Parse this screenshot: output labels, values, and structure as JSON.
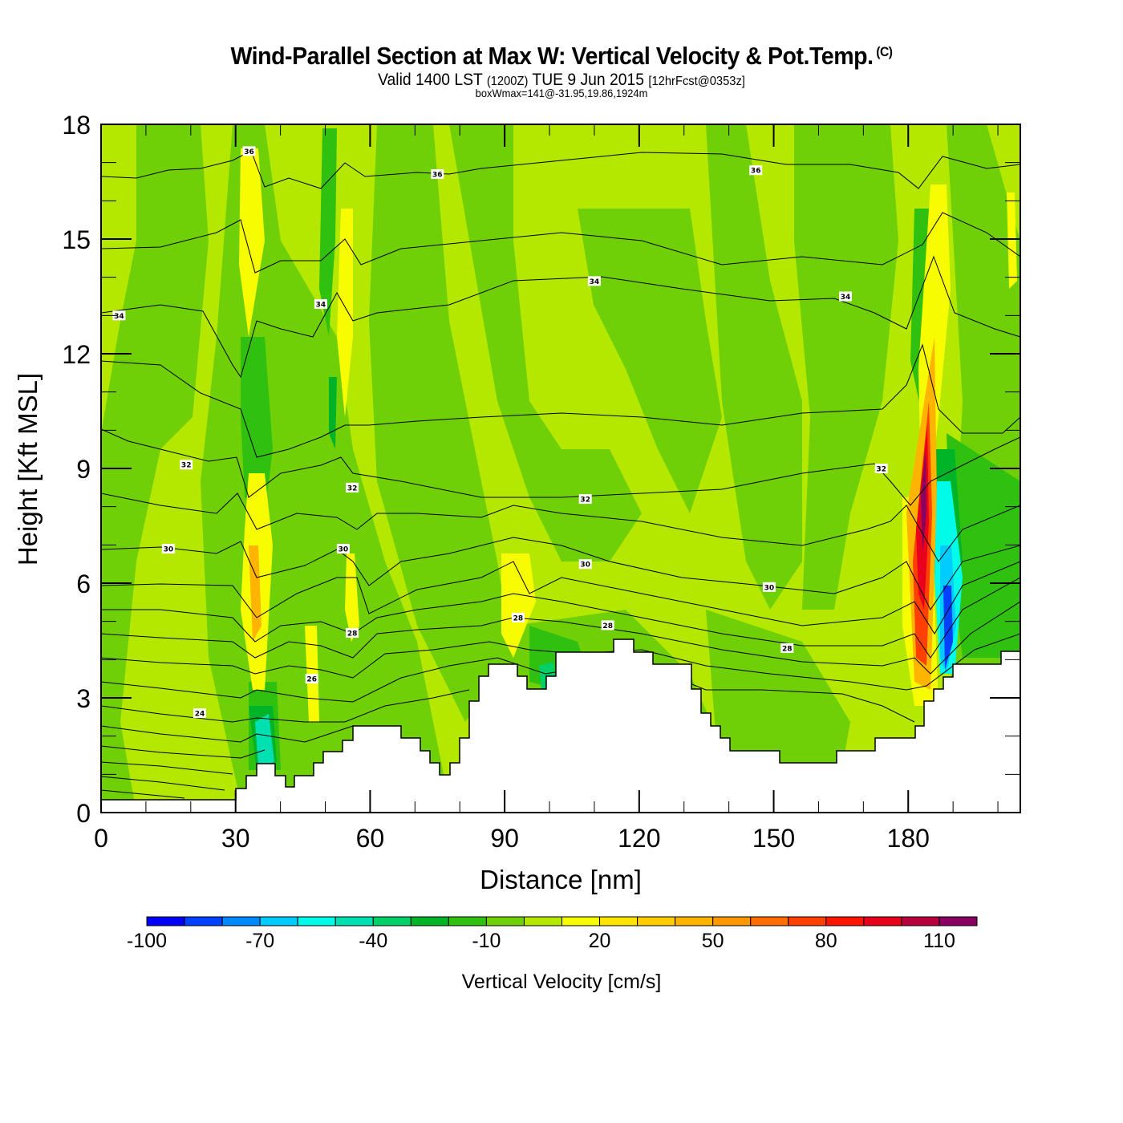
{
  "header": {
    "title": "Wind-Parallel Section at Max W: Vertical Velocity & Pot.Temp.",
    "copyright": "(C)",
    "valid_prefix": "Valid 1400 LST",
    "valid_z": "(1200Z)",
    "valid_date": "TUE 9 Jun 2015",
    "forecast": "[12hrFcst@0353z]",
    "box_info": "boxWmax=141@-31.95,19.86,1924m"
  },
  "chart_data": {
    "type": "heatmap",
    "title": "Wind-Parallel Section at Max W: Vertical Velocity & Pot.Temp.",
    "xlabel": "Distance [nm]",
    "ylabel": "Height [Kft MSL]",
    "xlim": [
      0,
      205
    ],
    "ylim": [
      0,
      18
    ],
    "x_ticks": [
      0,
      30,
      60,
      90,
      120,
      150,
      180
    ],
    "x_tick_labels": [
      "0",
      "30",
      "60",
      "90",
      "120",
      "150",
      "180"
    ],
    "x_minor_step": 10,
    "y_ticks": [
      0,
      3,
      6,
      9,
      12,
      15,
      18
    ],
    "y_tick_labels": [
      "0",
      "3",
      "6",
      "9",
      "12",
      "15",
      "18"
    ],
    "y_minor_step": 1,
    "colorbar": {
      "title": "Vertical Velocity [cm/s]",
      "levels": [
        -100,
        -90,
        -80,
        -70,
        -60,
        -50,
        -40,
        -30,
        -20,
        -10,
        0,
        10,
        20,
        30,
        40,
        50,
        60,
        70,
        80,
        90,
        100,
        110,
        120
      ],
      "tick_values": [
        -100,
        -70,
        -40,
        -10,
        20,
        50,
        80,
        110
      ],
      "tick_labels": [
        "-100",
        "-70",
        "-40",
        "-10",
        "20",
        "50",
        "80",
        "110"
      ],
      "colors": [
        "#0000f8",
        "#0040ff",
        "#0088ff",
        "#00ccff",
        "#00fce8",
        "#00e0b0",
        "#00d068",
        "#00b428",
        "#30c010",
        "#70d008",
        "#b4e800",
        "#f8fc00",
        "#ffe400",
        "#ffcc00",
        "#ffb400",
        "#ff9800",
        "#ff6c00",
        "#ff4000",
        "#ff1400",
        "#e8001c",
        "#b8003c",
        "#880060"
      ]
    },
    "max_updraft": {
      "value_cm_s": 141,
      "lat": -31.95,
      "lon": 19.86,
      "height_m": 1924
    },
    "contour_field": "Potential Temperature",
    "contour_labels": [
      {
        "text": "36",
        "x_nm": 33,
        "y_kft": 17.3
      },
      {
        "text": "36",
        "x_nm": 75,
        "y_kft": 16.7
      },
      {
        "text": "36",
        "x_nm": 146,
        "y_kft": 16.8
      },
      {
        "text": "34",
        "x_nm": 4,
        "y_kft": 13.0
      },
      {
        "text": "34",
        "x_nm": 49,
        "y_kft": 13.3
      },
      {
        "text": "34",
        "x_nm": 110,
        "y_kft": 13.9
      },
      {
        "text": "34",
        "x_nm": 166,
        "y_kft": 13.5
      },
      {
        "text": "32",
        "x_nm": 19,
        "y_kft": 9.1
      },
      {
        "text": "32",
        "x_nm": 56,
        "y_kft": 8.5
      },
      {
        "text": "32",
        "x_nm": 108,
        "y_kft": 8.2
      },
      {
        "text": "32",
        "x_nm": 174,
        "y_kft": 9.0
      },
      {
        "text": "30",
        "x_nm": 15,
        "y_kft": 6.9
      },
      {
        "text": "30",
        "x_nm": 54,
        "y_kft": 6.9
      },
      {
        "text": "30",
        "x_nm": 108,
        "y_kft": 6.5
      },
      {
        "text": "30",
        "x_nm": 149,
        "y_kft": 5.9
      },
      {
        "text": "28",
        "x_nm": 56,
        "y_kft": 4.7
      },
      {
        "text": "28",
        "x_nm": 93,
        "y_kft": 5.1
      },
      {
        "text": "28",
        "x_nm": 113,
        "y_kft": 4.9
      },
      {
        "text": "28",
        "x_nm": 153,
        "y_kft": 4.3
      },
      {
        "text": "26",
        "x_nm": 47,
        "y_kft": 3.5
      },
      {
        "text": "24",
        "x_nm": 22,
        "y_kft": 2.6
      }
    ]
  }
}
